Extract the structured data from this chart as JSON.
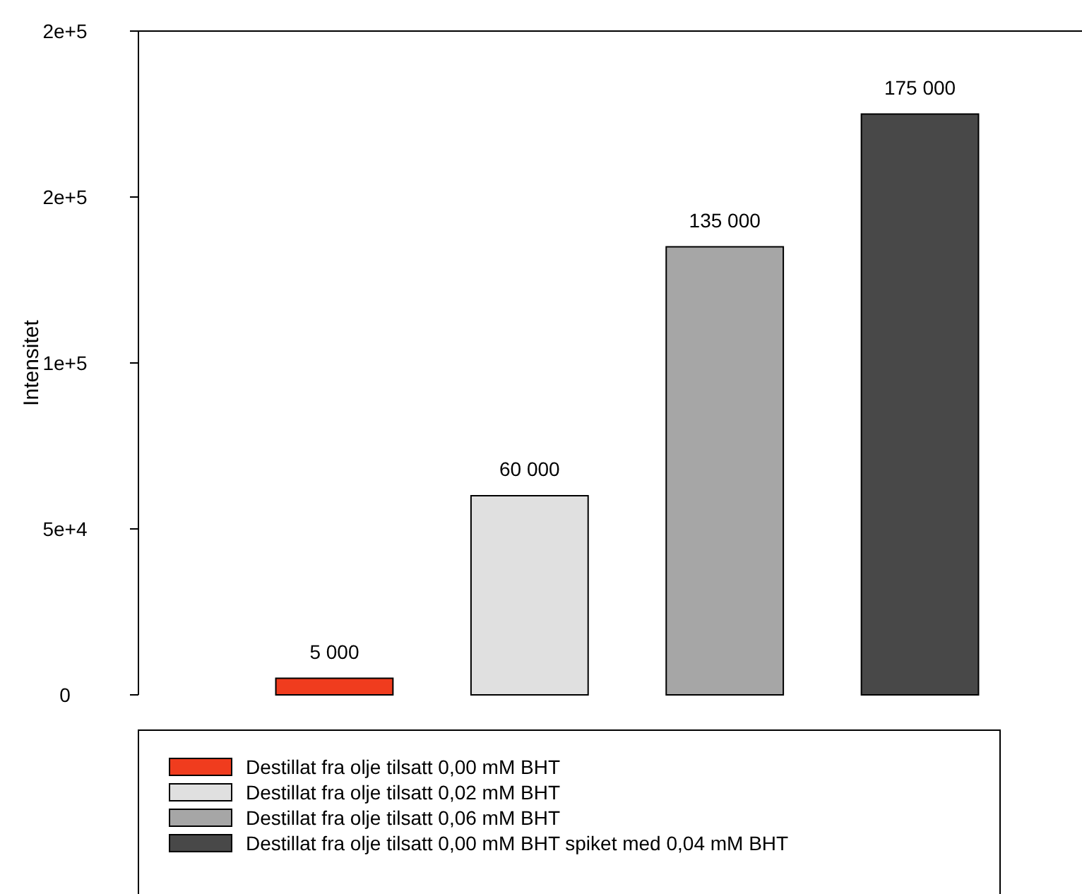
{
  "chart_data": {
    "type": "bar",
    "ylabel": "Intensitet",
    "categories": [
      null,
      null,
      null,
      null
    ],
    "series": [
      {
        "name": "Destillat fra olje tilsatt 0,00 mM BHT",
        "color": "#f03c1e",
        "values": [
          5000,
          null,
          null,
          null
        ],
        "value_labels": [
          "5 000",
          null,
          null,
          null
        ]
      },
      {
        "name": "Destillat fra olje tilsatt 0,02 mM BHT",
        "color": "#e0e0e0",
        "values": [
          null,
          60000,
          null,
          null
        ],
        "value_labels": [
          null,
          "60 000",
          null,
          null
        ]
      },
      {
        "name": "Destillat fra olje tilsatt 0,06 mM BHT",
        "color": "#a6a6a6",
        "values": [
          null,
          null,
          135000,
          null
        ],
        "value_labels": [
          null,
          null,
          "135 000",
          null
        ]
      },
      {
        "name": "Destillat fra olje tilsatt 0,00 mM BHT spiket med 0,04 mM BHT",
        "color": "#484848",
        "values": [
          null,
          null,
          null,
          175000
        ],
        "value_labels": [
          null,
          null,
          null,
          "175 000"
        ]
      }
    ],
    "ylim": [
      0,
      200000
    ],
    "yticks": [
      0,
      {
        "value": 50000,
        "label": "5e+4"
      },
      {
        "value": 100000,
        "label": "1e+5"
      },
      {
        "value": 150000,
        "label": "2e+5"
      },
      {
        "value": 200000,
        "label": "2e+5"
      }
    ],
    "legend": "bottom"
  }
}
